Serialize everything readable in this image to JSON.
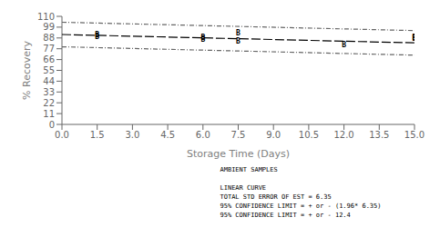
{
  "chart_data": {
    "type": "scatter",
    "xlabel": "Storage Time (Days)",
    "ylabel": "% Recovery",
    "xlim": [
      0.0,
      15.0
    ],
    "ylim": [
      0,
      110
    ],
    "xticks": [
      {
        "value": 0.0,
        "label": "0.0"
      },
      1.5,
      {
        "value": 3.0,
        "label": "3.0"
      },
      4.5,
      {
        "value": 6.0,
        "label": "6.0"
      },
      7.5,
      {
        "value": 9.0,
        "label": "9.0"
      },
      10.5,
      {
        "value": 12.0,
        "label": "12.0"
      },
      13.5,
      {
        "value": 15.0,
        "label": "15.0"
      }
    ],
    "yticks": [
      0,
      11,
      22,
      33,
      44,
      55,
      66,
      77,
      88,
      99,
      110
    ],
    "grid": false,
    "series": [
      {
        "type": "line",
        "x": [
          0.0,
          15.0
        ],
        "values": [
          104.0,
          95.5
        ],
        "color": "#666666",
        "line_style": "dashdot"
      },
      {
        "type": "line",
        "x": [
          0.0,
          15.0
        ],
        "values": [
          79.0,
          70.5
        ],
        "color": "#666666",
        "line_style": "dashdot"
      },
      {
        "type": "line",
        "x": [
          0.0,
          15.0
        ],
        "values": [
          91.5,
          83.0
        ],
        "color": "#000000",
        "line_style": "dashed"
      },
      {
        "type": "scatter",
        "x": [
          1.5,
          1.5,
          6.0,
          6.0,
          7.5,
          7.5,
          12.0,
          15.0,
          15.0
        ],
        "values": [
          89.5,
          91.5,
          88.0,
          86.5,
          93.0,
          84.5,
          80.5,
          87.0,
          88.5
        ],
        "color": "#000000",
        "marker": "B"
      }
    ],
    "annotations": [
      "AMBIENT SAMPLES",
      "LINEAR CURVE",
      "TOTAL STD ERROR OF EST = 6.35",
      "95% CONFIDENCE LIMIT = + or - (1.96* 6.35)",
      "95% CONFIDENCE LIMIT = + or - 12.4"
    ]
  }
}
